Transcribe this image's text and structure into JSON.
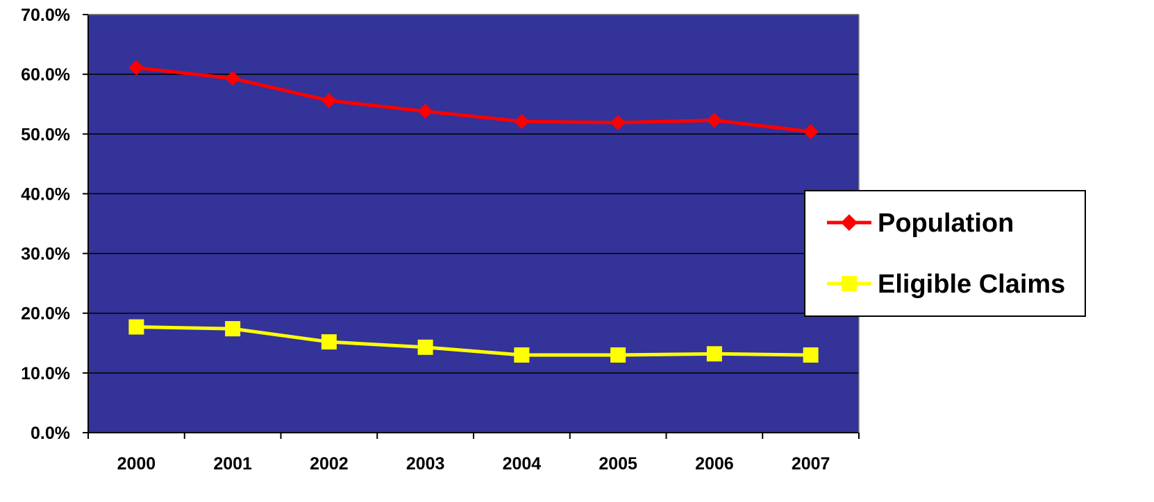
{
  "chart_data": {
    "type": "line",
    "categories": [
      "2000",
      "2001",
      "2002",
      "2003",
      "2004",
      "2005",
      "2006",
      "2007"
    ],
    "series": [
      {
        "name": "Population",
        "values": [
          61.1,
          59.3,
          55.6,
          53.8,
          52.1,
          51.9,
          52.3,
          50.4
        ],
        "color": "#ff0000",
        "marker": "diamond"
      },
      {
        "name": "Eligible Claims",
        "values": [
          17.7,
          17.4,
          15.2,
          14.3,
          13.0,
          13.0,
          13.2,
          13.0
        ],
        "color": "#ffff00",
        "marker": "square"
      }
    ],
    "title": "",
    "xlabel": "",
    "ylabel": "",
    "ylim": [
      0,
      70
    ],
    "yticks": [
      0,
      10,
      20,
      30,
      40,
      50,
      60,
      70
    ],
    "ytick_labels": [
      "0.0%",
      "10.0%",
      "20.0%",
      "30.0%",
      "40.0%",
      "50.0%",
      "60.0%",
      "70.0%"
    ],
    "grid": "horizontal",
    "legend": "right",
    "plot_background": "#333399",
    "gridline_color": "#000000"
  }
}
